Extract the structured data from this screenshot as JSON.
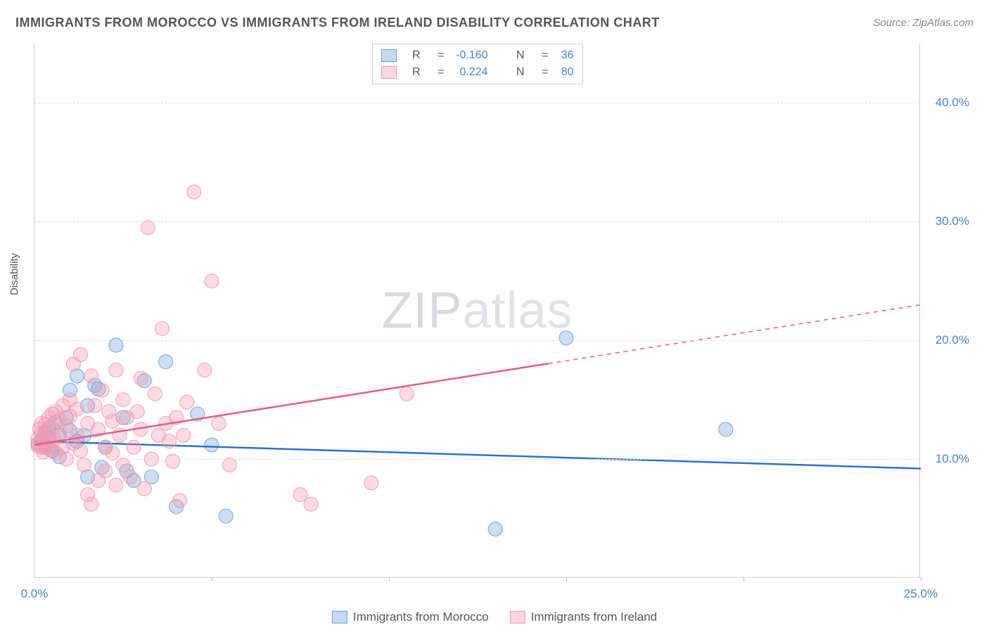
{
  "title": "IMMIGRANTS FROM MOROCCO VS IMMIGRANTS FROM IRELAND DISABILITY CORRELATION CHART",
  "source_prefix": "Source: ",
  "source_name": "ZipAtlas.com",
  "watermark_bold": "ZIP",
  "watermark_thin": "atlas",
  "ylabel": "Disability",
  "chart": {
    "type": "scatter",
    "xlim": [
      0,
      25
    ],
    "ylim": [
      0,
      45
    ],
    "y_gridlines": [
      10,
      20,
      30,
      40
    ],
    "y_tick_labels": [
      "10.0%",
      "20.0%",
      "30.0%",
      "40.0%"
    ],
    "x_ticks": [
      0,
      5,
      10,
      15,
      20,
      25
    ],
    "x_tick_labels": [
      "0.0%",
      "25.0%"
    ],
    "x_tick_label_positions": [
      0,
      25
    ],
    "grid_color": "#dddddd",
    "axis_color": "#cccccc",
    "background": "#ffffff",
    "marker_radius": 10,
    "marker_fill_opacity": 0.35,
    "marker_stroke_opacity": 0.8,
    "marker_stroke_width": 1.2,
    "line_width": 2.5,
    "series": [
      {
        "name": "Immigrants from Morocco",
        "color": "#6fa0de",
        "line_color": "#2b71d1",
        "R": "-0.160",
        "N": "36",
        "trend": {
          "x1": 0,
          "y1": 11.5,
          "x2": 25,
          "y2": 9.2,
          "dash_from_x": null
        },
        "points": [
          [
            0.1,
            11.3
          ],
          [
            0.2,
            11.6
          ],
          [
            0.3,
            12.2
          ],
          [
            0.3,
            11.0
          ],
          [
            0.4,
            11.8
          ],
          [
            0.4,
            12.6
          ],
          [
            0.6,
            13.1
          ],
          [
            0.7,
            12.0
          ],
          [
            0.7,
            10.2
          ],
          [
            0.9,
            13.5
          ],
          [
            1.0,
            12.4
          ],
          [
            1.0,
            15.8
          ],
          [
            1.2,
            11.5
          ],
          [
            1.2,
            17.0
          ],
          [
            1.4,
            12.0
          ],
          [
            1.5,
            14.5
          ],
          [
            1.5,
            8.5
          ],
          [
            1.7,
            16.2
          ],
          [
            1.8,
            15.9
          ],
          [
            1.9,
            9.3
          ],
          [
            2.0,
            11.0
          ],
          [
            2.3,
            19.6
          ],
          [
            2.5,
            13.5
          ],
          [
            2.6,
            9.0
          ],
          [
            2.8,
            8.2
          ],
          [
            3.1,
            16.6
          ],
          [
            3.3,
            8.5
          ],
          [
            3.7,
            18.2
          ],
          [
            4.0,
            6.0
          ],
          [
            4.6,
            13.8
          ],
          [
            5.0,
            11.2
          ],
          [
            5.4,
            5.2
          ],
          [
            13.0,
            4.1
          ],
          [
            15.0,
            20.2
          ],
          [
            19.5,
            12.5
          ],
          [
            0.5,
            10.7
          ]
        ]
      },
      {
        "name": "Immigrants from Ireland",
        "color": "#f598b0",
        "line_color": "#e85a85",
        "R": "0.224",
        "N": "80",
        "trend": {
          "x1": 0,
          "y1": 11.2,
          "x2": 25,
          "y2": 23.0,
          "dash_from_x": 14.5
        },
        "points": [
          [
            0.1,
            11.1
          ],
          [
            0.1,
            11.7
          ],
          [
            0.15,
            11.3
          ],
          [
            0.2,
            12.2
          ],
          [
            0.2,
            11.0
          ],
          [
            0.2,
            13.0
          ],
          [
            0.25,
            10.6
          ],
          [
            0.3,
            12.9
          ],
          [
            0.3,
            11.4
          ],
          [
            0.35,
            12.0
          ],
          [
            0.4,
            13.5
          ],
          [
            0.4,
            11.1
          ],
          [
            0.45,
            10.8
          ],
          [
            0.5,
            12.6
          ],
          [
            0.5,
            13.8
          ],
          [
            0.55,
            11.6
          ],
          [
            0.6,
            14.0
          ],
          [
            0.6,
            10.5
          ],
          [
            0.7,
            12.2
          ],
          [
            0.7,
            13.3
          ],
          [
            0.8,
            11.0
          ],
          [
            0.8,
            14.5
          ],
          [
            0.9,
            12.8
          ],
          [
            0.9,
            10.0
          ],
          [
            1.0,
            13.6
          ],
          [
            1.0,
            15.0
          ],
          [
            1.1,
            11.3
          ],
          [
            1.1,
            18.0
          ],
          [
            1.2,
            12.0
          ],
          [
            1.2,
            14.2
          ],
          [
            1.3,
            18.8
          ],
          [
            1.3,
            10.7
          ],
          [
            1.4,
            9.5
          ],
          [
            1.5,
            7.0
          ],
          [
            1.5,
            13.0
          ],
          [
            1.6,
            6.2
          ],
          [
            1.6,
            17.0
          ],
          [
            1.7,
            14.5
          ],
          [
            1.8,
            8.2
          ],
          [
            1.8,
            12.5
          ],
          [
            1.9,
            15.8
          ],
          [
            2.0,
            11.0
          ],
          [
            2.0,
            9.0
          ],
          [
            2.1,
            14.0
          ],
          [
            2.2,
            10.5
          ],
          [
            2.2,
            13.2
          ],
          [
            2.3,
            17.5
          ],
          [
            2.3,
            7.8
          ],
          [
            2.4,
            12.0
          ],
          [
            2.5,
            15.0
          ],
          [
            2.5,
            9.5
          ],
          [
            2.6,
            13.5
          ],
          [
            2.7,
            8.5
          ],
          [
            2.8,
            11.0
          ],
          [
            2.9,
            14.0
          ],
          [
            3.0,
            16.8
          ],
          [
            3.0,
            12.5
          ],
          [
            3.1,
            7.5
          ],
          [
            3.2,
            29.5
          ],
          [
            3.3,
            10.0
          ],
          [
            3.4,
            15.5
          ],
          [
            3.5,
            12.0
          ],
          [
            3.6,
            21.0
          ],
          [
            3.7,
            13.0
          ],
          [
            3.8,
            11.5
          ],
          [
            3.9,
            9.8
          ],
          [
            4.0,
            13.5
          ],
          [
            4.1,
            6.5
          ],
          [
            4.2,
            12.0
          ],
          [
            4.3,
            14.8
          ],
          [
            4.5,
            32.5
          ],
          [
            4.8,
            17.5
          ],
          [
            5.0,
            25.0
          ],
          [
            5.2,
            13.0
          ],
          [
            5.5,
            9.5
          ],
          [
            7.5,
            7.0
          ],
          [
            7.8,
            6.2
          ],
          [
            9.5,
            8.0
          ],
          [
            10.5,
            15.5
          ],
          [
            0.15,
            12.5
          ]
        ]
      }
    ]
  },
  "legend": {
    "r_prefix": "R",
    "eq": "=",
    "n_prefix": "N",
    "items": [
      {
        "label": "Immigrants from Morocco"
      },
      {
        "label": "Immigrants from Ireland"
      }
    ]
  }
}
